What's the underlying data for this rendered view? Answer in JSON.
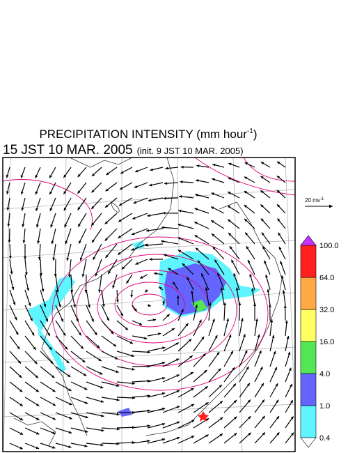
{
  "title": {
    "text": "PRECIPITATION INTENSITY (mm hour",
    "superscript": "-1",
    "close": ")"
  },
  "subtitle": {
    "main": "15 JST 10 MAR. 2005",
    "init": "(init. 9 JST 10 MAR. 2005)"
  },
  "vector_scale": {
    "label": "20 ms",
    "superscript": "-1"
  },
  "colorbar": {
    "levels": [
      0.4,
      {
        "value": 1,
        "label": "1.0"
      },
      {
        "value": 4,
        "label": "4.0"
      },
      {
        "value": 16,
        "label": "16.0"
      },
      {
        "value": 32,
        "label": "32.0"
      },
      {
        "value": 64,
        "label": "64.0"
      },
      {
        "value": 100,
        "label": "100.0"
      }
    ],
    "colors": [
      "#5ff5ff",
      "#6464ff",
      "#55e655",
      "#ffff64",
      "#ffaa44",
      "#ff2020"
    ],
    "over_color": "#c832ff",
    "under_color": "#ffffff"
  }
}
